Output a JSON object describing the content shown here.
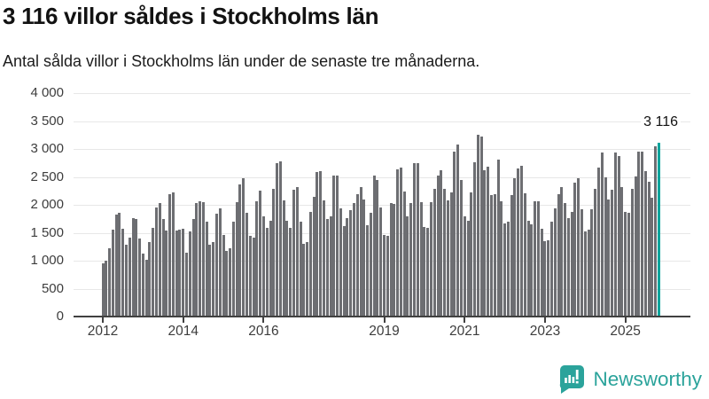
{
  "header": {
    "title": "3 116 villor såldes i Stockholms län",
    "subtitle": "Antal sålda villor i Stockholms län under de senaste tre månaderna."
  },
  "annotation": {
    "label": "3 116"
  },
  "footer": {
    "brand": "Newsworthy",
    "brand_color": "#2ba39b"
  },
  "chart_data": {
    "type": "bar",
    "title": "3 116 villor såldes i Stockholms län",
    "subtitle": "Antal sålda villor i Stockholms län under de senaste tre månaderna.",
    "frequency": "monthly",
    "x_start": "2012-01",
    "x_end": "2025-11",
    "ylim": [
      0,
      4000
    ],
    "grid": true,
    "bar_color": "#6d6e72",
    "highlight_color": "#0aa49c",
    "highlight_last": true,
    "highlight_label": "3 116",
    "y_ticks": [
      {
        "label": "0",
        "value": 0
      },
      {
        "label": "500",
        "value": 500
      },
      {
        "label": "1 000",
        "value": 1000
      },
      {
        "label": "1 500",
        "value": 1500
      },
      {
        "label": "2 000",
        "value": 2000
      },
      {
        "label": "2 500",
        "value": 2500
      },
      {
        "label": "3 000",
        "value": 3000
      },
      {
        "label": "3 500",
        "value": 3500
      },
      {
        "label": "4 000",
        "value": 4000
      }
    ],
    "x_tick_years": [
      2012,
      2014,
      2016,
      2019,
      2021,
      2023,
      2025
    ],
    "values": [
      950,
      1000,
      1220,
      1550,
      1830,
      1850,
      1570,
      1290,
      1420,
      1760,
      1740,
      1390,
      1120,
      1020,
      1330,
      1580,
      1950,
      2030,
      1740,
      1540,
      2190,
      2220,
      1540,
      1550,
      1570,
      1140,
      1530,
      1740,
      2030,
      2060,
      2040,
      1700,
      1290,
      1340,
      1840,
      1940,
      1460,
      1170,
      1230,
      1700,
      2040,
      2360,
      2470,
      1860,
      1440,
      1420,
      2070,
      2250,
      1800,
      1580,
      1720,
      2280,
      2740,
      2780,
      2080,
      1720,
      1580,
      2270,
      2320,
      1700,
      1300,
      1340,
      1870,
      2150,
      2590,
      2610,
      2080,
      1740,
      1800,
      2520,
      2530,
      1940,
      1620,
      1760,
      1910,
      2030,
      2190,
      2320,
      2100,
      1640,
      1860,
      2520,
      2450,
      1950,
      1460,
      1440,
      2030,
      2020,
      2640,
      2660,
      2240,
      1800,
      2030,
      2750,
      2740,
      2040,
      1600,
      1590,
      2040,
      2290,
      2520,
      2620,
      2280,
      2080,
      2230,
      2950,
      3080,
      2440,
      1800,
      1720,
      2220,
      2770,
      3260,
      3220,
      2620,
      2680,
      2170,
      2190,
      2810,
      2060,
      1660,
      1700,
      2170,
      2470,
      2650,
      2700,
      2200,
      1720,
      1650,
      2070,
      2060,
      1570,
      1350,
      1370,
      1700,
      1940,
      2190,
      2320,
      2030,
      1760,
      1880,
      2400,
      2470,
      1920,
      1530,
      1550,
      1920,
      2290,
      2660,
      2940,
      2490,
      2100,
      2270,
      2940,
      2870,
      2320,
      1880,
      1860,
      2290,
      2510,
      2960,
      2960,
      2600,
      2410,
      2130,
      3050,
      3116
    ]
  }
}
